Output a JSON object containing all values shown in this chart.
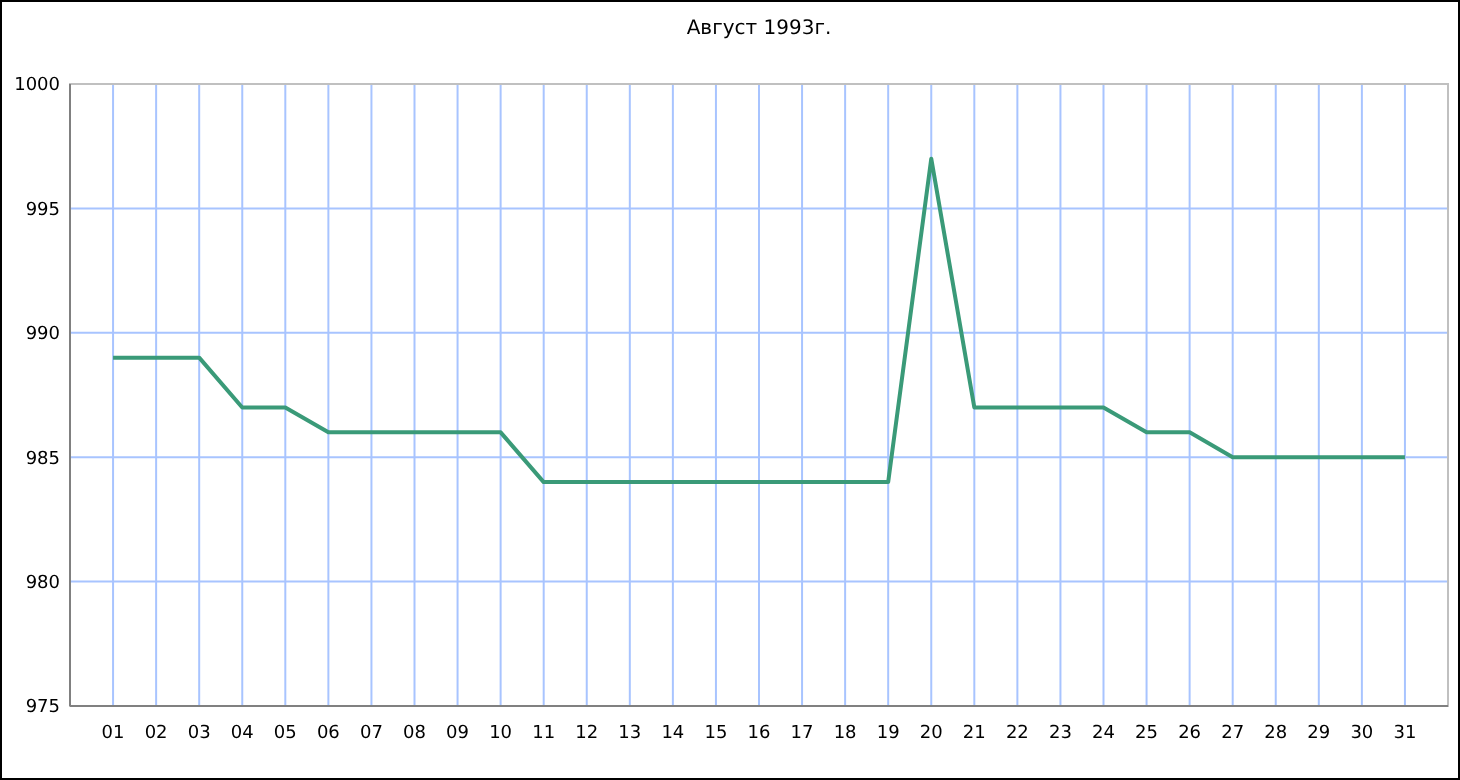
{
  "chart_data": {
    "type": "line",
    "title": "Август 1993г.",
    "categories": [
      "01",
      "02",
      "03",
      "04",
      "05",
      "06",
      "07",
      "08",
      "09",
      "10",
      "11",
      "12",
      "13",
      "14",
      "15",
      "16",
      "17",
      "18",
      "19",
      "20",
      "21",
      "22",
      "23",
      "24",
      "25",
      "26",
      "27",
      "28",
      "29",
      "30",
      "31"
    ],
    "series": [
      {
        "color": "#3a9a78",
        "values": [
          989,
          989,
          989,
          987,
          987,
          986,
          986,
          986,
          986,
          986,
          984,
          984,
          984,
          984,
          984,
          984,
          984,
          984,
          984,
          997,
          987,
          987,
          987,
          987,
          986,
          986,
          985,
          985,
          985,
          985,
          985
        ]
      }
    ],
    "ylim": [
      975,
      1000
    ],
    "yticks": [
      975,
      980,
      985,
      990,
      995,
      1000
    ],
    "grid": true,
    "marker": "none",
    "line_style": "solid"
  }
}
